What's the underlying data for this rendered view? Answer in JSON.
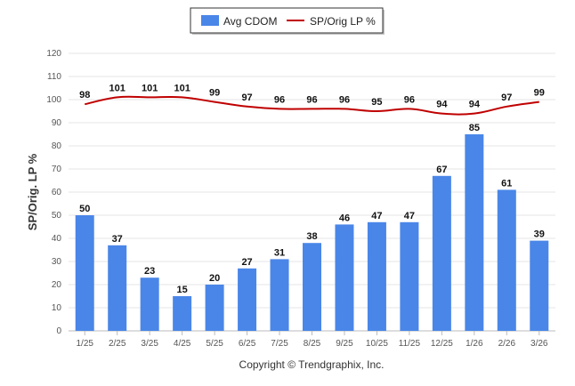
{
  "chart_data": {
    "type": "bar",
    "title": "",
    "xlabel": "",
    "ylabel": "SP/Orig. LP %",
    "ylim": [
      0,
      120
    ],
    "yticks": [
      0,
      10,
      20,
      30,
      40,
      50,
      60,
      70,
      80,
      90,
      100,
      110,
      120
    ],
    "grid": true,
    "legend_position": "top-center",
    "categories": [
      "1/25",
      "2/25",
      "3/25",
      "4/25",
      "5/25",
      "6/25",
      "7/25",
      "8/25",
      "9/25",
      "10/25",
      "11/25",
      "12/25",
      "1/26",
      "2/26",
      "3/26"
    ],
    "series": [
      {
        "name": "Avg CDOM",
        "type": "bar",
        "color": "#4a86e8",
        "values": [
          50,
          37,
          23,
          15,
          20,
          27,
          31,
          38,
          46,
          47,
          47,
          67,
          85,
          61,
          39
        ]
      },
      {
        "name": "SP/Orig LP %",
        "type": "line",
        "color": "#c00000",
        "values": [
          98,
          101,
          101,
          101,
          99,
          97,
          96,
          96,
          96,
          95,
          96,
          94,
          94,
          97,
          99
        ]
      }
    ]
  },
  "footer": {
    "copyright": "Copyright © Trendgraphix, Inc."
  }
}
